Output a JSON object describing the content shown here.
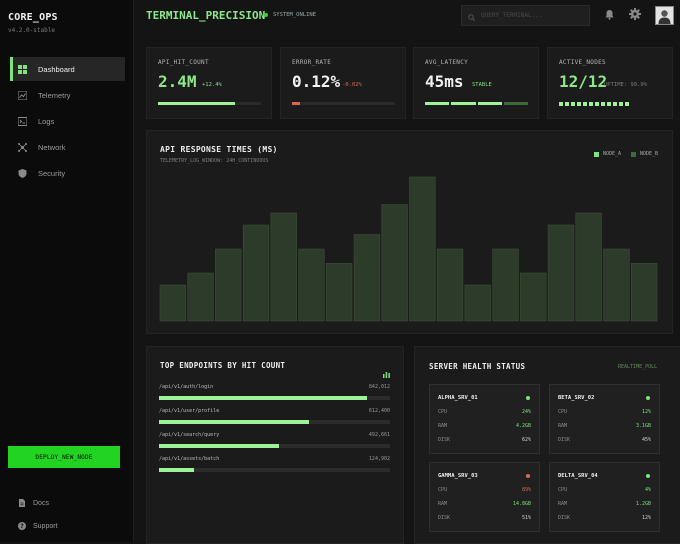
{
  "brand": {
    "name": "CORE_OPS",
    "version": "v4.2.0-stable"
  },
  "nav": [
    {
      "label": "Dashboard",
      "icon": "grid-icon",
      "active": true
    },
    {
      "label": "Telemetry",
      "icon": "chart-icon",
      "active": false
    },
    {
      "label": "Logs",
      "icon": "terminal-icon",
      "active": false
    },
    {
      "label": "Network",
      "icon": "network-icon",
      "active": false
    },
    {
      "label": "Security",
      "icon": "shield-icon",
      "active": false
    }
  ],
  "deploy_label": "DEPLOY_NEW_NODE",
  "footer_nav": [
    {
      "label": "Docs",
      "icon": "doc-icon"
    },
    {
      "label": "Support",
      "icon": "help-icon"
    }
  ],
  "topbar": {
    "title": "TERMINAL_PRECISION",
    "status": "SYSTEM_ONLINE",
    "search_placeholder": "QUERY_TERMINAL..."
  },
  "kpis": [
    {
      "label": "API_HIT_COUNT",
      "value": "2.4M",
      "delta": "+12.4%",
      "delta_color": "#7fe27d",
      "progress": 0.75
    },
    {
      "label": "ERROR_RATE",
      "value": "0.12%",
      "delta": "-0.02%",
      "delta_color": "#e0674f",
      "progress": 0.08
    },
    {
      "label": "AVG_LATENCY",
      "value": "45ms",
      "delta": "STABLE",
      "delta_color": "#7fe27d",
      "segments": 4
    },
    {
      "label": "ACTIVE_NODES",
      "value": "12/12",
      "delta": "UPTIME: 99.9%",
      "delta_color": "#7a7a7a",
      "dots": 12
    }
  ],
  "chart": {
    "title": "API RESPONSE TIMES (MS)",
    "subtitle": "TELEMETRY_LOG_WINDOW: 24H_CONTINUOUS",
    "legend": [
      {
        "name": "NODE_A",
        "color": "#7fe27d"
      },
      {
        "name": "NODE_B",
        "color": "#3e6b3c"
      }
    ]
  },
  "chart_data": {
    "type": "bar",
    "values": [
      30,
      40,
      60,
      80,
      90,
      60,
      48,
      72,
      97,
      120,
      60,
      30,
      60,
      40,
      80,
      90,
      60,
      48
    ],
    "ylim": [
      0,
      125
    ],
    "xlabel": "",
    "ylabel": ""
  },
  "endpoints": {
    "title": "TOP ENDPOINTS BY HIT COUNT",
    "rows": [
      {
        "path": "/api/v1/auth/login",
        "count": "842,012",
        "fraction": 0.9
      },
      {
        "path": "/api/v1/user/profile",
        "count": "612,400",
        "fraction": 0.65
      },
      {
        "path": "/api/v1/search/query",
        "count": "492,661",
        "fraction": 0.52
      },
      {
        "path": "/api/v1/assets/batch",
        "count": "124,902",
        "fraction": 0.15
      }
    ]
  },
  "health": {
    "title": "SERVER HEALTH STATUS",
    "mode": "REALTIME_POLL",
    "servers": [
      {
        "name": "ALPHA_SRV_01",
        "status_color": "#7fe27d",
        "cpu": "24%",
        "cpu_color": "#7fe27d",
        "ram": "4.2GB",
        "ram_color": "#7fe27d",
        "disk": "62%"
      },
      {
        "name": "BETA_SRV_02",
        "status_color": "#7fe27d",
        "cpu": "12%",
        "cpu_color": "#7fe27d",
        "ram": "3.1GB",
        "ram_color": "#7fe27d",
        "disk": "45%"
      },
      {
        "name": "GAMMA_SRV_03",
        "status_color": "#e0674f",
        "cpu": "89%",
        "cpu_color": "#e0674f",
        "ram": "14.8GB",
        "ram_color": "#7fe27d",
        "disk": "51%"
      },
      {
        "name": "DELTA_SRV_04",
        "status_color": "#7fe27d",
        "cpu": "4%",
        "cpu_color": "#7fe27d",
        "ram": "1.2GB",
        "ram_color": "#7fe27d",
        "disk": "12%"
      }
    ],
    "metric_labels": {
      "cpu": "CPU",
      "ram": "RAM",
      "disk": "DISK"
    }
  }
}
